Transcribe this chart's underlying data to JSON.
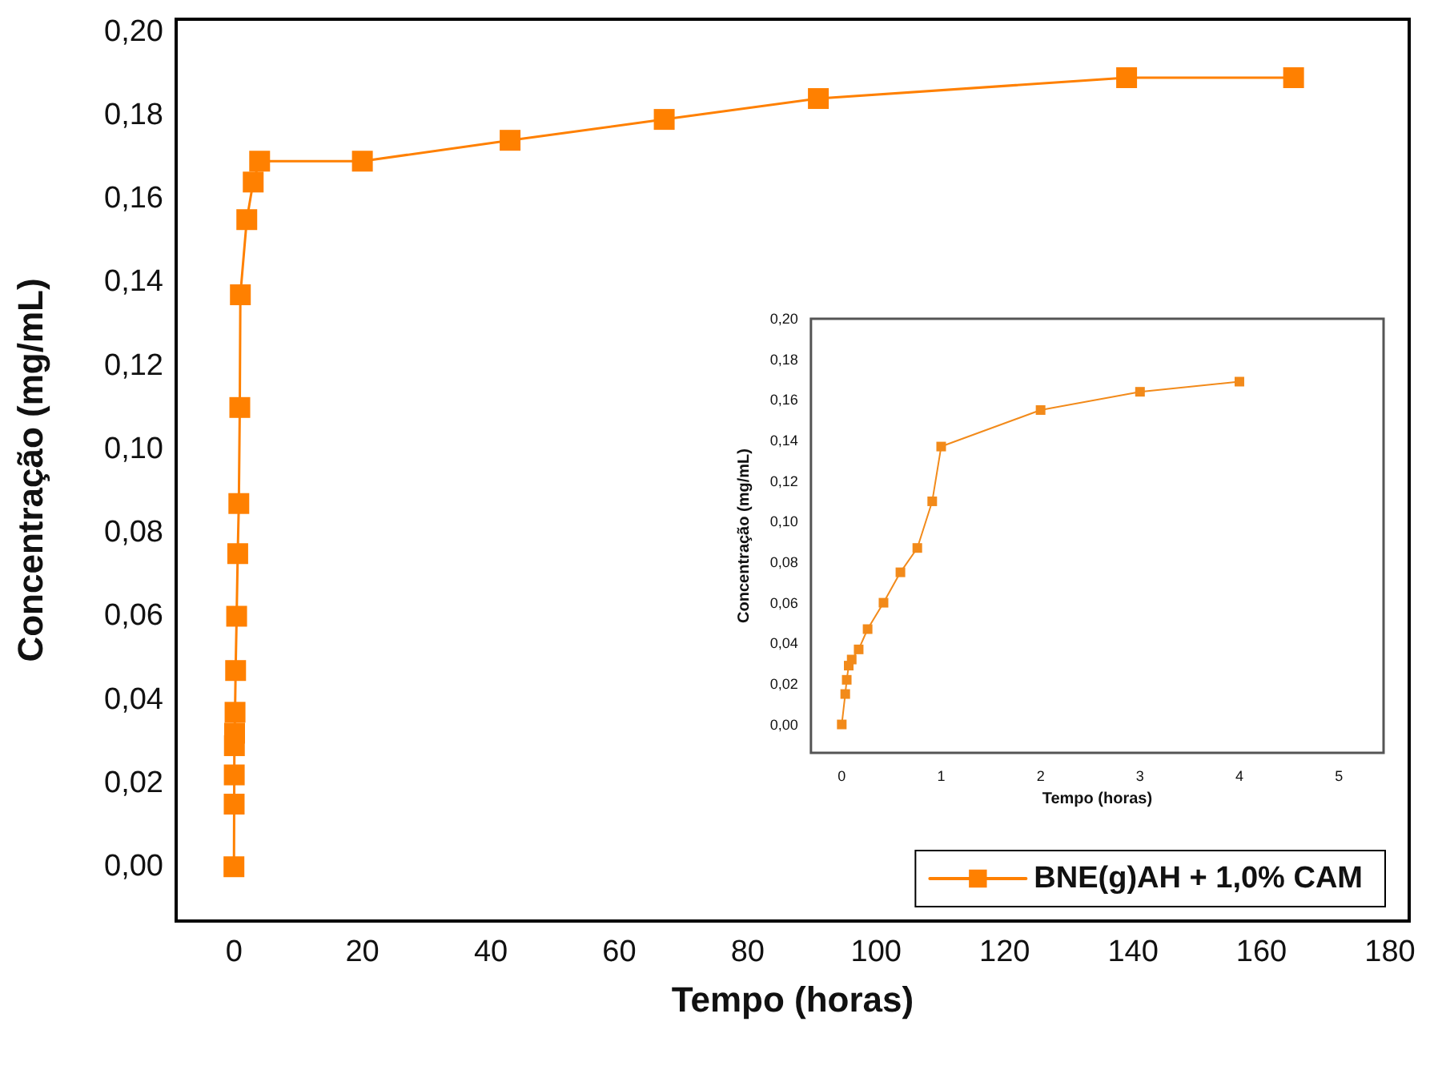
{
  "chart_data": [
    {
      "type": "line",
      "xlabel": "Tempo (horas)",
      "ylabel": "Concentração (mg/mL)",
      "xlim": [
        -9,
        183
      ],
      "ylim": [
        -0.013,
        0.203
      ],
      "xticks": [
        0,
        20,
        40,
        60,
        80,
        100,
        120,
        140,
        160,
        180
      ],
      "yticks": [
        {
          "value": 0,
          "label": "0,00"
        },
        {
          "value": 0.02,
          "label": "0,02"
        },
        {
          "value": 0.04,
          "label": "0,04"
        },
        {
          "value": 0.06,
          "label": "0,06"
        },
        {
          "value": 0.08,
          "label": "0,08"
        },
        {
          "value": 0.1,
          "label": "0,10"
        },
        {
          "value": 0.12,
          "label": "0,12"
        },
        {
          "value": 0.14,
          "label": "0,14"
        },
        {
          "value": 0.16,
          "label": "0,16"
        },
        {
          "value": 0.18,
          "label": "0,18"
        },
        {
          "value": 0.2,
          "label": "0,20"
        }
      ],
      "grid": false,
      "legend": "bottom right",
      "marker": "square",
      "line_style": "solid",
      "series": [
        {
          "name": "BNE(g)AH + 1,0% CAM",
          "color": "#ff8000",
          "x": [
            0,
            0.035,
            0.05,
            0.07,
            0.1,
            0.17,
            0.26,
            0.42,
            0.59,
            0.76,
            0.91,
            1,
            2,
            3,
            4,
            20,
            43,
            67,
            91,
            139,
            165
          ],
          "values": [
            0,
            0.015,
            0.022,
            0.029,
            0.032,
            0.037,
            0.047,
            0.06,
            0.075,
            0.087,
            0.11,
            0.137,
            0.155,
            0.164,
            0.169,
            0.169,
            0.174,
            0.179,
            0.184,
            0.189,
            0.189
          ]
        }
      ]
    },
    {
      "type": "line",
      "xlabel": "Tempo (horas)",
      "ylabel": "Concentração (mg/mL)",
      "xlim": [
        -0.31,
        5.45
      ],
      "ylim": [
        -0.014,
        0.2
      ],
      "xticks": [
        0,
        1,
        2,
        3,
        4,
        5
      ],
      "yticks": [
        {
          "value": 0,
          "label": "0,00"
        },
        {
          "value": 0.02,
          "label": "0,02"
        },
        {
          "value": 0.04,
          "label": "0,04"
        },
        {
          "value": 0.06,
          "label": "0,06"
        },
        {
          "value": 0.08,
          "label": "0,08"
        },
        {
          "value": 0.1,
          "label": "0,10"
        },
        {
          "value": 0.12,
          "label": "0,12"
        },
        {
          "value": 0.14,
          "label": "0,14"
        },
        {
          "value": 0.16,
          "label": "0,16"
        },
        {
          "value": 0.18,
          "label": "0,18"
        },
        {
          "value": 0.2,
          "label": "0,20"
        }
      ],
      "grid": false,
      "marker": "square",
      "line_style": "solid",
      "series": [
        {
          "color": "#f28a1a",
          "x": [
            0,
            0.035,
            0.05,
            0.07,
            0.1,
            0.17,
            0.26,
            0.42,
            0.59,
            0.76,
            0.91,
            1,
            2,
            3,
            4
          ],
          "values": [
            0,
            0.015,
            0.022,
            0.029,
            0.032,
            0.037,
            0.047,
            0.06,
            0.075,
            0.087,
            0.11,
            0.137,
            0.155,
            0.164,
            0.169
          ]
        }
      ]
    }
  ]
}
